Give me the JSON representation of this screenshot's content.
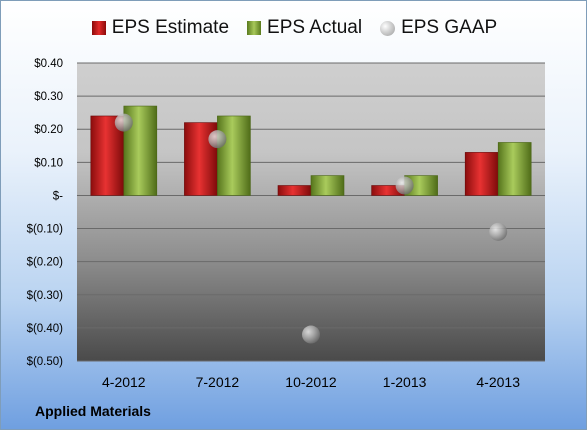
{
  "chart_data": {
    "type": "bar",
    "title": "",
    "categories": [
      "4-2012",
      "7-2012",
      "10-2012",
      "1-2013",
      "4-2013"
    ],
    "series": [
      {
        "name": "EPS Estimate",
        "kind": "bar",
        "color": "#d42222",
        "values": [
          0.24,
          0.22,
          0.03,
          0.03,
          0.13
        ]
      },
      {
        "name": "EPS Actual",
        "kind": "bar",
        "color": "#8fb43c",
        "values": [
          0.27,
          0.24,
          0.06,
          0.06,
          0.16
        ]
      },
      {
        "name": "EPS GAAP",
        "kind": "marker",
        "color": "#a0a0a0",
        "values": [
          0.22,
          0.17,
          -0.42,
          0.03,
          -0.11
        ]
      }
    ],
    "yticks": [
      0.4,
      0.3,
      0.2,
      0.1,
      0,
      -0.1,
      -0.2,
      -0.3,
      -0.4,
      -0.5
    ],
    "ytick_labels": [
      "$0.40",
      "$0.30",
      "$0.20",
      "$0.10",
      "$-",
      "$(0.10)",
      "$(0.20)",
      "$(0.30)",
      "$(0.40)",
      "$(0.50)"
    ],
    "ylim": [
      -0.5,
      0.4
    ],
    "grid": true,
    "legend": "top"
  },
  "legend": {
    "estimate": "EPS Estimate",
    "actual": "EPS Actual",
    "gaap": "EPS GAAP"
  },
  "company": "Applied Materials"
}
